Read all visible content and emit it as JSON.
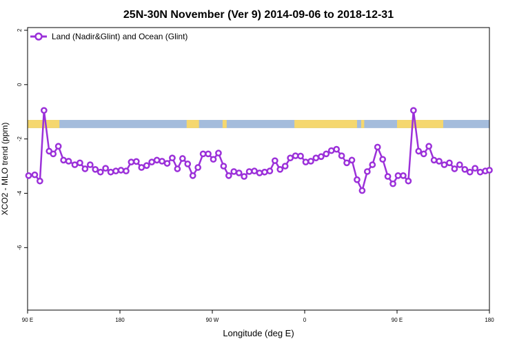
{
  "chart_data": {
    "type": "line",
    "title": "25N-30N November (Ver 9)   2014-09-06 to 2018-12-31",
    "xlabel": "Longitude (deg E)",
    "ylabel": "XCO2 - MLO trend (ppm)",
    "xlim": [
      90,
      540
    ],
    "ylim": [
      -8.3,
      2.1
    ],
    "x_ticks": [
      {
        "value": 90,
        "label": "90 E"
      },
      {
        "value": 180,
        "label": "180"
      },
      {
        "value": 270,
        "label": "90 W"
      },
      {
        "value": 360,
        "label": "0"
      },
      {
        "value": 450,
        "label": "90 E"
      },
      {
        "value": 540,
        "label": "180"
      }
    ],
    "y_ticks": [
      {
        "value": 2,
        "label": "2"
      },
      {
        "value": 0,
        "label": "0"
      },
      {
        "value": -2,
        "label": "-2"
      },
      {
        "value": -4,
        "label": "-4"
      },
      {
        "value": -6,
        "label": "-6"
      }
    ],
    "grid": false,
    "legend_position": "top-left",
    "land_ocean_band": {
      "y_range": [
        -1.6,
        -1.3
      ],
      "ocean_color": "#a4bcdc",
      "land_color": "#f5d76e",
      "land_segments": [
        [
          90,
          121
        ],
        [
          245,
          257
        ],
        [
          280,
          284
        ],
        [
          350,
          411
        ],
        [
          415,
          418
        ],
        [
          450,
          495
        ]
      ]
    },
    "series": [
      {
        "name": "Land (Nadir&Glint) and Ocean (Glint)",
        "color": "#9b30d9",
        "x": [
          91,
          97,
          102,
          106,
          111,
          115,
          120,
          125,
          130,
          136,
          141,
          146,
          151,
          156,
          161,
          166,
          171,
          176,
          181,
          186,
          191,
          196,
          201,
          206,
          211,
          216,
          221,
          226,
          231,
          236,
          241,
          246,
          251,
          256,
          261,
          266,
          271,
          276,
          281,
          286,
          291,
          296,
          301,
          306,
          311,
          316,
          321,
          326,
          331,
          336,
          341,
          346,
          351,
          356,
          361,
          366,
          371,
          376,
          381,
          386,
          391,
          396,
          401,
          406,
          411,
          416,
          421,
          426,
          431,
          436,
          441,
          446,
          451,
          456,
          461,
          466,
          471,
          476,
          481,
          486,
          491,
          496,
          501,
          506,
          511,
          516,
          521,
          526,
          531,
          536,
          540
        ],
        "y": [
          -3.35,
          -3.32,
          -3.55,
          -0.95,
          -2.45,
          -2.55,
          -2.27,
          -2.78,
          -2.82,
          -2.95,
          -2.88,
          -3.1,
          -2.95,
          -3.12,
          -3.22,
          -3.08,
          -3.22,
          -3.18,
          -3.15,
          -3.18,
          -2.85,
          -2.83,
          -3.05,
          -2.98,
          -2.85,
          -2.78,
          -2.82,
          -2.9,
          -2.7,
          -3.1,
          -2.72,
          -2.92,
          -3.35,
          -3.05,
          -2.55,
          -2.55,
          -2.75,
          -2.52,
          -3.0,
          -3.35,
          -3.2,
          -3.25,
          -3.38,
          -3.2,
          -3.18,
          -3.25,
          -3.22,
          -3.18,
          -2.8,
          -3.12,
          -3.0,
          -2.7,
          -2.62,
          -2.63,
          -2.85,
          -2.82,
          -2.7,
          -2.65,
          -2.55,
          -2.43,
          -2.38,
          -2.62,
          -2.88,
          -2.78,
          -3.5,
          -3.9,
          -3.2,
          -2.95,
          -2.3,
          -2.75,
          -3.38,
          -3.65,
          -3.35,
          -3.35,
          -3.55,
          -0.95,
          -2.45,
          -2.55,
          -2.27,
          -2.78,
          -2.82,
          -2.95,
          -2.88,
          -3.1,
          -2.95,
          -3.12,
          -3.22,
          -3.08,
          -3.22,
          -3.18,
          -3.15
        ]
      }
    ]
  }
}
